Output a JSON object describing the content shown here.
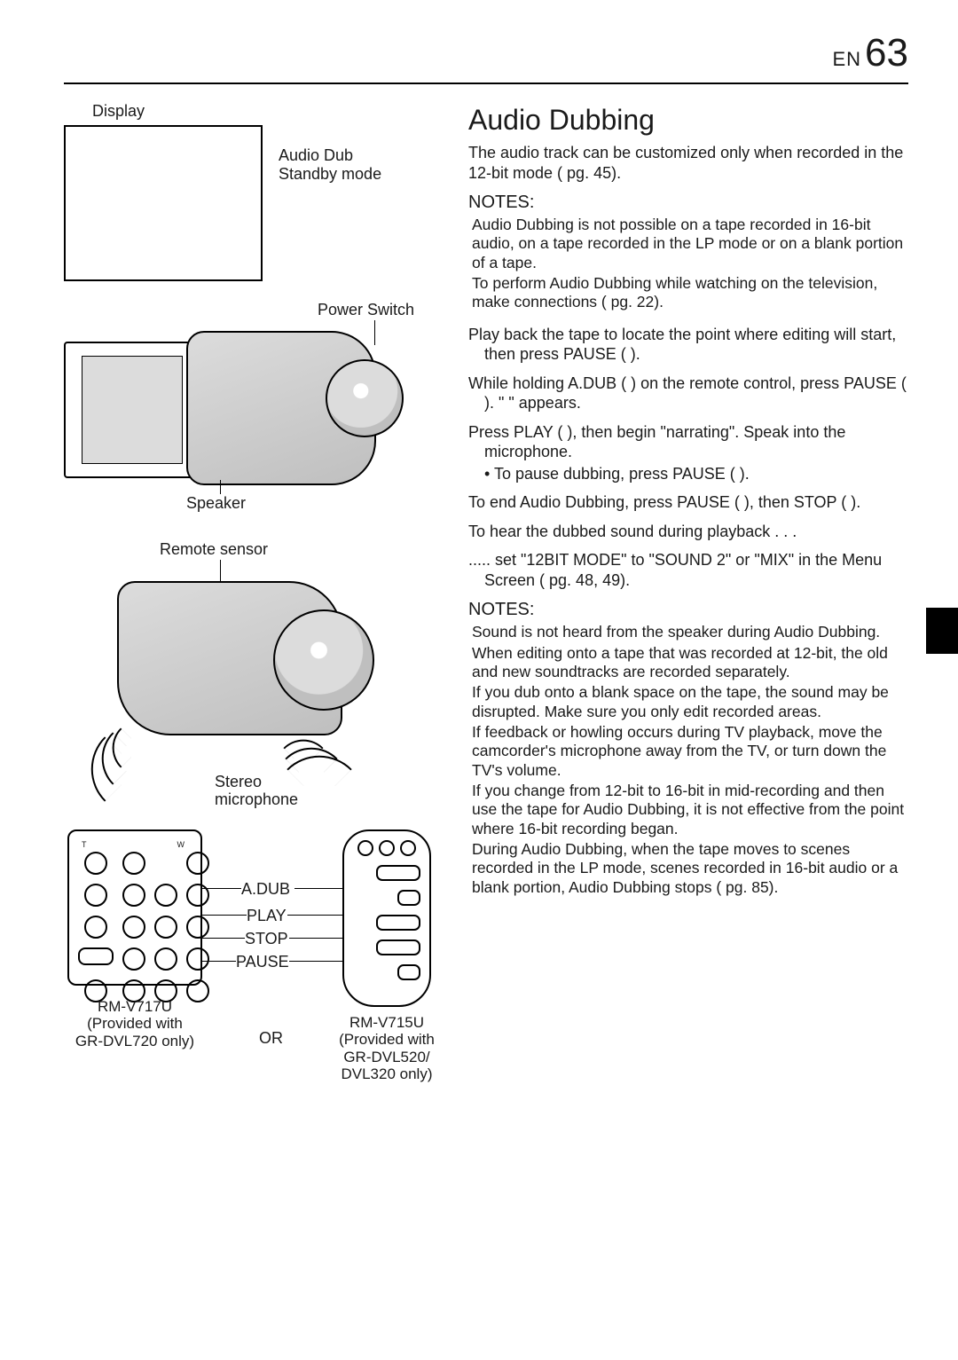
{
  "header": {
    "lang": "EN",
    "page": "63"
  },
  "figures": {
    "display": {
      "label_display": "Display",
      "label_mode_l1": "Audio Dub",
      "label_mode_l2": "Standby mode"
    },
    "camcorder_rear": {
      "label_power": "Power Switch",
      "label_speaker": "Speaker"
    },
    "camcorder_front": {
      "label_remote_sensor": "Remote sensor",
      "label_stereo_l1": "Stereo",
      "label_stereo_l2": "microphone"
    },
    "remotes": {
      "tw_t": "T",
      "tw_w": "W",
      "labels": {
        "adub": "A.DUB",
        "play": "PLAY",
        "stop": "STOP",
        "pause": "PAUSE"
      },
      "left_caption_l1": "RM-V717U",
      "left_caption_l2": "(Provided with",
      "left_caption_l3": "GR-DVL720 only)",
      "or": "OR",
      "right_caption_l1": "RM-V715U",
      "right_caption_l2": "(Provided with",
      "right_caption_l3": "GR-DVL520/",
      "right_caption_l4": "DVL320 only)"
    }
  },
  "section": {
    "title": "Audio Dubbing",
    "intro": "The audio track can be customized only when recorded in the 12-bit mode (     pg. 45).",
    "notes1_h": "NOTES:",
    "notes1": [
      "Audio Dubbing is not possible on a tape recorded in 16-bit audio, on a tape recorded in the LP mode or on a blank portion of a tape.",
      "To perform Audio Dubbing while watching on the television, make connections (     pg. 22)."
    ],
    "steps": [
      {
        "main": "Play back the tape to locate the point where editing will start, then press PAUSE (  )."
      },
      {
        "main": "While holding A.DUB (  ) on the remote control, press PAUSE (  ). \"     \" appears."
      },
      {
        "main": "Press PLAY (  ), then begin \"narrating\". Speak into the microphone.",
        "sub_bullet": "To pause dubbing, press PAUSE (  )."
      },
      {
        "main": "To end Audio Dubbing, press PAUSE (  ), then STOP (  )."
      }
    ],
    "hear_l1": "To hear the dubbed sound during playback . . .",
    "hear_l2": "..... set \"12BIT MODE\" to \"SOUND 2\" or \"MIX\" in the Menu Screen (     pg. 48, 49).",
    "notes2_h": "NOTES:",
    "notes2": [
      "Sound is not heard from the speaker during Audio Dubbing.",
      "When editing onto a tape that was recorded at 12-bit, the old and new soundtracks are recorded separately.",
      "If you dub onto a blank space on the tape, the sound may be disrupted. Make sure you only edit recorded areas.",
      "If feedback or howling occurs during TV playback, move the camcorder's microphone away from the TV, or turn down the TV's volume.",
      "If you change from 12-bit to 16-bit in mid-recording and then use the tape for Audio Dubbing, it is not effective from the point where 16-bit recording began.",
      "During Audio Dubbing, when the tape moves to scenes recorded in the LP mode, scenes recorded in 16-bit audio or a blank portion, Audio Dubbing stops (     pg. 85)."
    ]
  }
}
